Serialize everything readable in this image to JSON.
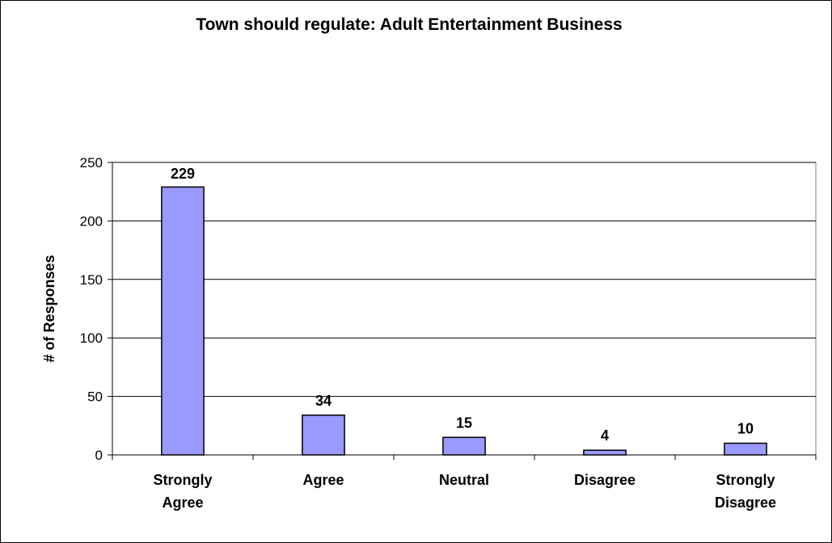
{
  "chart_data": {
    "type": "bar",
    "title": "Town should regulate: Adult Entertainment Business",
    "xlabel": "",
    "ylabel": "# of Responses",
    "categories": [
      [
        "Strongly",
        "Agree"
      ],
      [
        "Agree"
      ],
      [
        "Neutral"
      ],
      [
        "Disagree"
      ],
      [
        "Strongly",
        "Disagree"
      ]
    ],
    "values": [
      229,
      34,
      15,
      4,
      10
    ],
    "data_labels": [
      "229",
      "34",
      "15",
      "4",
      "10"
    ],
    "ylim": [
      0,
      250
    ],
    "yticks": [
      0,
      50,
      100,
      150,
      200,
      250
    ],
    "grid": true,
    "legend": "none",
    "colors": {
      "bar_fill": "#9999ff",
      "bar_stroke": "#000000",
      "grid": "#000000",
      "axis": "#000000"
    }
  }
}
